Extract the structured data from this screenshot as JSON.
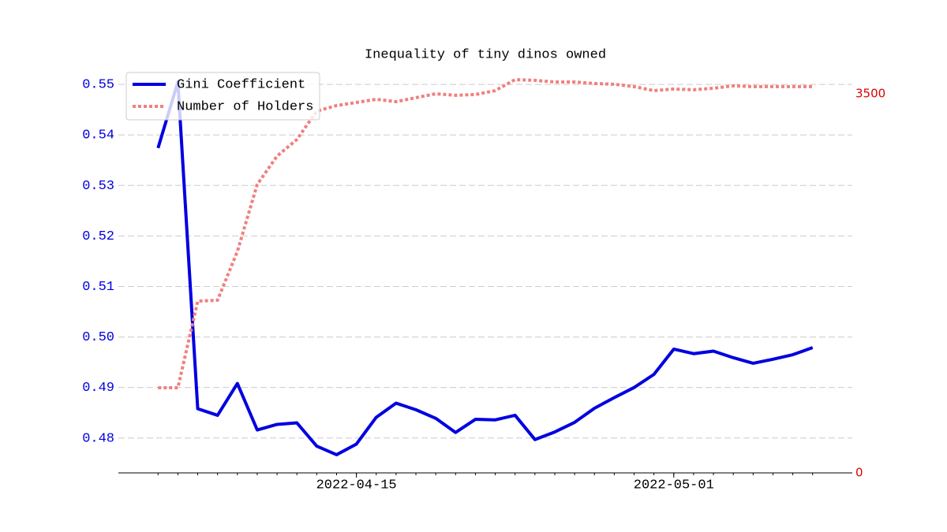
{
  "chart_data": {
    "type": "line",
    "title": "Inequality of tiny dinos owned",
    "x": [
      "2022-04-05",
      "2022-04-06",
      "2022-04-07",
      "2022-04-08",
      "2022-04-09",
      "2022-04-10",
      "2022-04-11",
      "2022-04-12",
      "2022-04-13",
      "2022-04-14",
      "2022-04-15",
      "2022-04-16",
      "2022-04-17",
      "2022-04-18",
      "2022-04-19",
      "2022-04-20",
      "2022-04-21",
      "2022-04-22",
      "2022-04-23",
      "2022-04-24",
      "2022-04-25",
      "2022-04-26",
      "2022-04-27",
      "2022-04-28",
      "2022-04-29",
      "2022-04-30",
      "2022-05-01",
      "2022-05-02",
      "2022-05-03",
      "2022-05-04",
      "2022-05-05",
      "2022-05-06",
      "2022-05-07",
      "2022-05-08"
    ],
    "series": [
      {
        "name": "Gini Coefficient",
        "color": "#0000e0",
        "style": "solid",
        "values": [
          0.5374,
          0.5505,
          0.4858,
          0.4845,
          0.4908,
          0.4816,
          0.4827,
          0.483,
          0.4784,
          0.4767,
          0.4788,
          0.4841,
          0.4869,
          0.4856,
          0.4839,
          0.4811,
          0.4837,
          0.4836,
          0.4845,
          0.4797,
          0.4812,
          0.4831,
          0.4859,
          0.488,
          0.49,
          0.4926,
          0.4976,
          0.4967,
          0.4972,
          0.4959,
          0.4948,
          0.4956,
          0.4965,
          0.4979
        ]
      },
      {
        "name": "Number of Holders",
        "color": "#f08080",
        "style": "dotted",
        "axis": "y2",
        "values": [
          786,
          786,
          1586,
          1594,
          2045,
          2663,
          2925,
          3078,
          3340,
          3391,
          3420,
          3449,
          3427,
          3464,
          3500,
          3486,
          3493,
          3529,
          3631,
          3624,
          3609,
          3609,
          3595,
          3588,
          3566,
          3529,
          3544,
          3537,
          3551,
          3573,
          3566,
          3566,
          3566,
          3566
        ]
      }
    ],
    "xlim": [
      "2022-04-03",
      "2022-05-10"
    ],
    "xticks": [
      "2022-04-15",
      "2022-05-01"
    ],
    "ylim": [
      0.4731,
      0.5522
    ],
    "yticks": [
      {
        "value": 0.48,
        "label": "0.48"
      },
      {
        "value": 0.49,
        "label": "0.49"
      },
      {
        "value": 0.5,
        "label": "0.50"
      },
      {
        "value": 0.51,
        "label": "0.51"
      },
      {
        "value": 0.52,
        "label": "0.52"
      },
      {
        "value": 0.53,
        "label": "0.53"
      },
      {
        "value": 0.54,
        "label": "0.54"
      },
      {
        "value": 0.55,
        "label": "0.55"
      }
    ],
    "y2lim": [
      0,
      3689
    ],
    "y2ticks": [
      0,
      3500
    ],
    "ytick_color": "#0000e0",
    "y2tick_color": "#e00000",
    "grid": true,
    "legend": "upper-left"
  }
}
